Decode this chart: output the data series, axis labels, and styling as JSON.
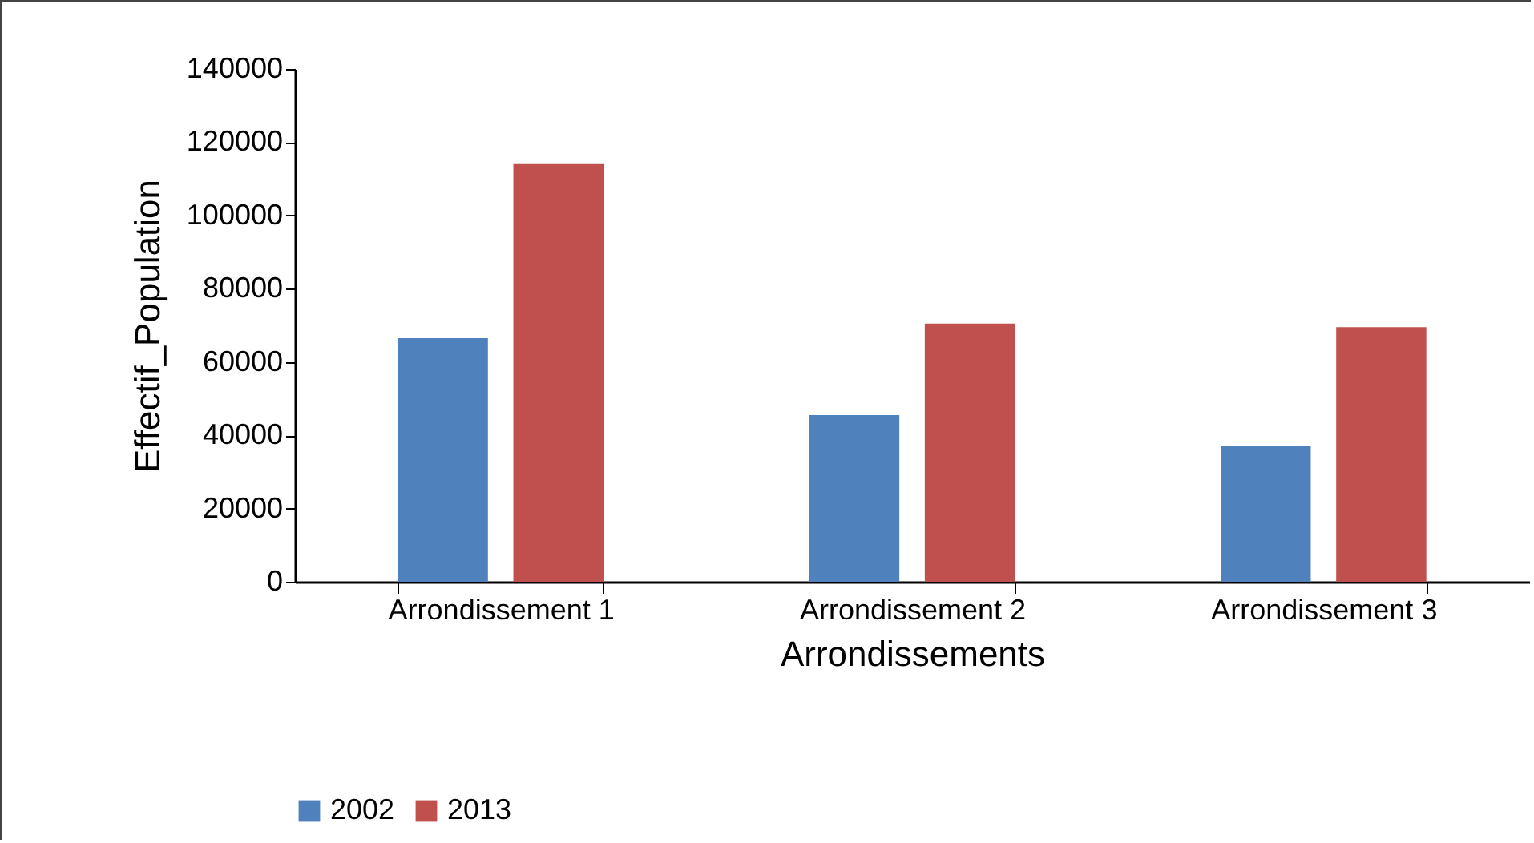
{
  "chart_data": {
    "type": "bar",
    "xlabel": "Arrondissements",
    "ylabel": "Effectif_Population",
    "categories": [
      "Arrondissement 1",
      "Arrondissement 2",
      "Arrondissement 3"
    ],
    "series": [
      {
        "name": "2002",
        "color": "#4f81bd",
        "values": [
          66500,
          45500,
          37000
        ]
      },
      {
        "name": "2013",
        "color": "#c0504d",
        "values": [
          114000,
          70500,
          69500
        ]
      }
    ],
    "ylim": [
      0,
      140000
    ],
    "yticks": [
      0,
      20000,
      40000,
      60000,
      80000,
      100000,
      120000,
      140000
    ],
    "grid": false,
    "legend": "bottom"
  }
}
